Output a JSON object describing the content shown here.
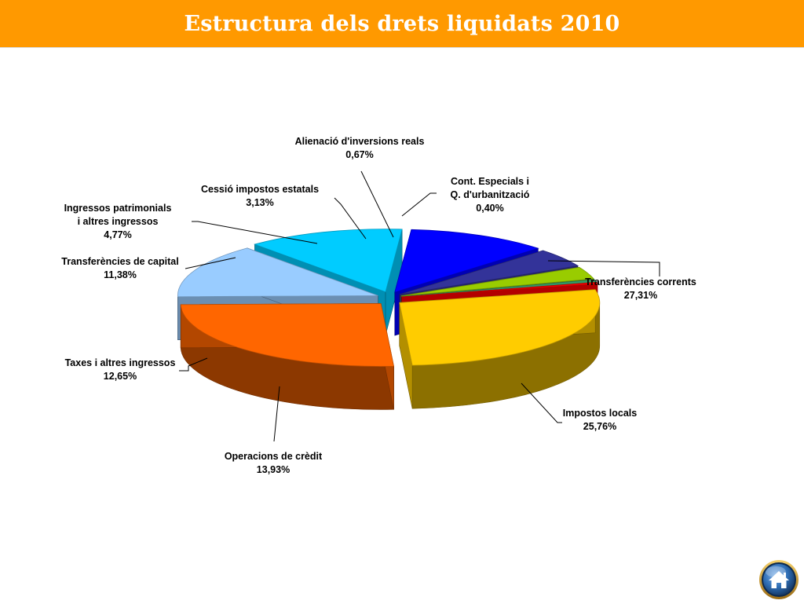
{
  "slide": {
    "title": "Estructura dels drets liquidats 2010"
  },
  "chart_data": {
    "type": "pie",
    "title": "",
    "style": "3d-exploded",
    "legend": "none",
    "data_labels": "outside-with-leader-lines",
    "slices": [
      {
        "label": "Transferències corrents",
        "value_text": "27,31%",
        "value": 27.31,
        "color": "#FFCC00"
      },
      {
        "label": "Impostos locals",
        "value_text": "25,76%",
        "value": 25.76,
        "color": "#FF6600"
      },
      {
        "label": "Operacions de crèdit",
        "value_text": "13,93%",
        "value": 13.93,
        "color": "#99CCFF"
      },
      {
        "label": "Taxes i altres ingressos",
        "value_text": "12,65%",
        "value": 12.65,
        "color": "#00CCFF"
      },
      {
        "label": "Transferències de capital",
        "value_text": "11,38%",
        "value": 11.38,
        "color": "#0000FF"
      },
      {
        "label": "Ingressos patrimonials i altres ingressos",
        "value_text": "4,77%",
        "value": 4.77,
        "color": "#333399"
      },
      {
        "label": "Cessió impostos estatals",
        "value_text": "3,13%",
        "value": 3.13,
        "color": "#99CC00"
      },
      {
        "label": "Alienació d'inversions reals",
        "value_text": "0,67%",
        "value": 0.67,
        "color": "#339966"
      },
      {
        "label": "Cont. Especials i Q. d'urbanització",
        "value_text": "0,40%",
        "value": 0.4,
        "color": "#FF0000"
      }
    ]
  },
  "home_button": {
    "icon": "home-icon",
    "color": "#2E6DB4"
  }
}
